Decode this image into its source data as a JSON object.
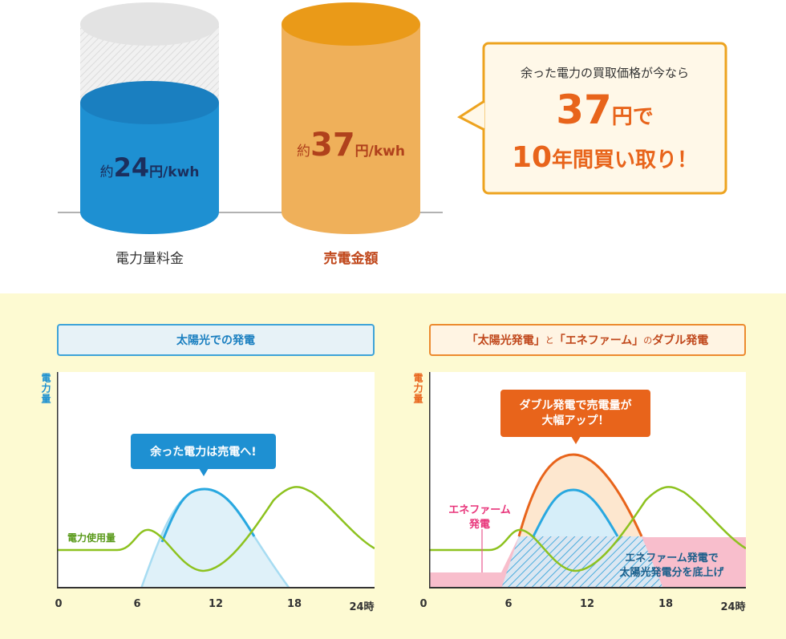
{
  "top": {
    "cylinder_left": {
      "value_prefix": "約",
      "value_number": "24",
      "value_unit": "円/kwh",
      "label": "電力量料金",
      "color": "#1e90d2"
    },
    "cylinder_right": {
      "value_prefix": "約",
      "value_number": "37",
      "value_unit": "円/kwh",
      "label": "売電金額",
      "color": "#eda63c"
    },
    "callout": {
      "line1": "余った電力の買取価格が今なら",
      "big_number": "37",
      "big_unit": "円で",
      "line3_number": "10",
      "line3_text": "年間買い取り！"
    }
  },
  "panel_left": {
    "title": "太陽光での発電",
    "ylabel": "電力量",
    "bubble": "余った電力は売電へ!",
    "usage_label": "電力使用量",
    "x_ticks": [
      "0",
      "6",
      "12",
      "18",
      "24時"
    ]
  },
  "panel_right": {
    "title_parts": [
      "「太陽光発電」",
      "と",
      "「エネファーム」",
      "の",
      "ダブル発電"
    ],
    "ylabel": "電力量",
    "bubble_line1": "ダブル発電で売電量が",
    "bubble_line2": "大幅アップ！",
    "enefarm_line1": "エネファーム",
    "enefarm_line2": "発電",
    "note_line1": "エネファーム発電で",
    "note_line2": "太陽光発電分を底上げ",
    "x_ticks": [
      "0",
      "6",
      "12",
      "18",
      "24時"
    ]
  },
  "colors": {
    "solar": "#29a8e0",
    "usage": "#8dc21f",
    "enefarm": "#f5a1b6",
    "double": "#e8641b",
    "blue_accent": "#1a8fd0",
    "orange_accent": "#e8641b"
  }
}
